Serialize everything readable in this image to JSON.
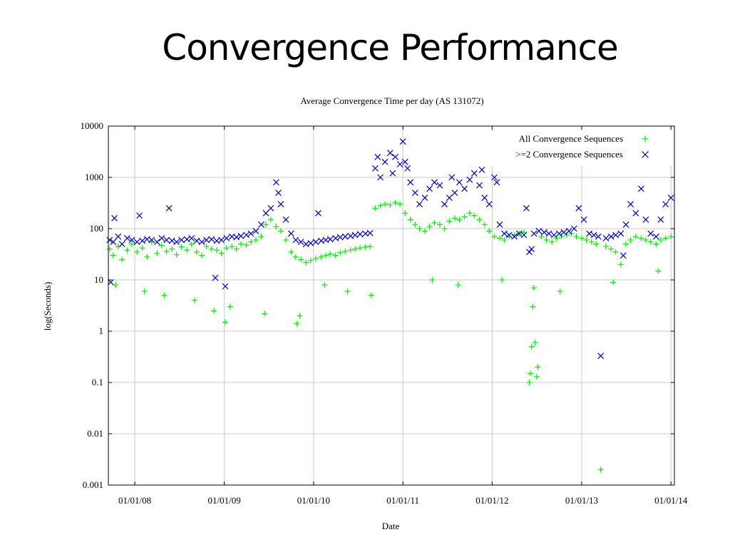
{
  "slide": {
    "title": "Convergence Performance"
  },
  "chart_data": {
    "type": "scatter",
    "title": "Average Convergence Time per day (AS 131072)",
    "xlabel": "Date",
    "ylabel": "log(Seconds)",
    "yscale": "log",
    "ylim": [
      0.001,
      10000
    ],
    "xlim": [
      "2007-09-15",
      "2014-01-15"
    ],
    "x_ticks": [
      "01/01/08",
      "01/01/09",
      "01/01/10",
      "01/01/11",
      "01/01/12",
      "01/01/13",
      "01/01/14"
    ],
    "y_ticks": [
      "10000",
      "1000",
      "100",
      "10",
      "1",
      "0.1",
      "0.01",
      "0.001"
    ],
    "grid": true,
    "legend_position": "top-right",
    "series": [
      {
        "name": "All Convergence Sequences",
        "marker": "+",
        "color": "#00ee00",
        "points": [
          [
            "2007-09-20",
            40
          ],
          [
            "2007-10-05",
            30
          ],
          [
            "2007-10-25",
            45
          ],
          [
            "2007-11-10",
            25
          ],
          [
            "2007-12-01",
            38
          ],
          [
            "2007-12-20",
            50
          ],
          [
            "2008-01-10",
            35
          ],
          [
            "2008-02-01",
            42
          ],
          [
            "2008-02-20",
            28
          ],
          [
            "2008-03-10",
            55
          ],
          [
            "2008-04-01",
            33
          ],
          [
            "2008-04-20",
            47
          ],
          [
            "2008-05-10",
            36
          ],
          [
            "2008-06-01",
            40
          ],
          [
            "2008-06-20",
            31
          ],
          [
            "2008-07-10",
            44
          ],
          [
            "2008-08-01",
            38
          ],
          [
            "2008-08-20",
            50
          ],
          [
            "2008-09-10",
            35
          ],
          [
            "2008-10-01",
            30
          ],
          [
            "2008-10-20",
            45
          ],
          [
            "2008-11-10",
            40
          ],
          [
            "2008-12-01",
            38
          ],
          [
            "2008-12-20",
            33
          ],
          [
            "2009-01-10",
            42
          ],
          [
            "2009-02-01",
            45
          ],
          [
            "2009-02-20",
            40
          ],
          [
            "2009-03-10",
            50
          ],
          [
            "2009-04-01",
            48
          ],
          [
            "2009-04-20",
            55
          ],
          [
            "2009-05-10",
            60
          ],
          [
            "2009-06-01",
            70
          ],
          [
            "2009-06-20",
            120
          ],
          [
            "2009-07-10",
            150
          ],
          [
            "2009-08-01",
            110
          ],
          [
            "2009-08-20",
            90
          ],
          [
            "2009-09-10",
            60
          ],
          [
            "2009-10-01",
            35
          ],
          [
            "2009-10-20",
            28
          ],
          [
            "2009-11-10",
            25
          ],
          [
            "2009-12-01",
            22
          ],
          [
            "2009-12-20",
            24
          ],
          [
            "2010-01-10",
            26
          ],
          [
            "2010-02-01",
            28
          ],
          [
            "2010-02-20",
            30
          ],
          [
            "2010-03-10",
            32
          ],
          [
            "2010-04-01",
            30
          ],
          [
            "2010-04-20",
            34
          ],
          [
            "2010-05-10",
            36
          ],
          [
            "2010-06-01",
            38
          ],
          [
            "2010-06-20",
            40
          ],
          [
            "2010-07-10",
            42
          ],
          [
            "2010-08-01",
            44
          ],
          [
            "2010-08-20",
            45
          ],
          [
            "2010-09-10",
            250
          ],
          [
            "2010-10-01",
            280
          ],
          [
            "2010-10-20",
            300
          ],
          [
            "2010-11-10",
            290
          ],
          [
            "2010-12-01",
            320
          ],
          [
            "2010-12-20",
            300
          ],
          [
            "2011-01-10",
            200
          ],
          [
            "2011-02-01",
            150
          ],
          [
            "2011-02-20",
            120
          ],
          [
            "2011-03-10",
            100
          ],
          [
            "2011-04-01",
            90
          ],
          [
            "2011-04-20",
            110
          ],
          [
            "2011-05-10",
            130
          ],
          [
            "2011-06-01",
            120
          ],
          [
            "2011-06-20",
            100
          ],
          [
            "2011-07-10",
            140
          ],
          [
            "2011-08-01",
            160
          ],
          [
            "2011-08-20",
            150
          ],
          [
            "2011-09-10",
            170
          ],
          [
            "2011-10-01",
            200
          ],
          [
            "2011-10-20",
            180
          ],
          [
            "2011-11-10",
            150
          ],
          [
            "2011-12-01",
            120
          ],
          [
            "2011-12-20",
            90
          ],
          [
            "2012-01-10",
            70
          ],
          [
            "2012-02-01",
            65
          ],
          [
            "2012-02-20",
            60
          ],
          [
            "2012-03-10",
            70
          ],
          [
            "2012-04-01",
            75
          ],
          [
            "2012-04-20",
            80
          ],
          [
            "2012-05-10",
            85
          ],
          [
            "2012-06-01",
            0.1
          ],
          [
            "2012-06-05",
            0.15
          ],
          [
            "2012-06-10",
            0.5
          ],
          [
            "2012-06-15",
            3
          ],
          [
            "2012-06-25",
            0.6
          ],
          [
            "2012-07-01",
            0.13
          ],
          [
            "2012-07-05",
            0.2
          ],
          [
            "2012-07-20",
            70
          ],
          [
            "2012-08-10",
            60
          ],
          [
            "2012-09-01",
            55
          ],
          [
            "2012-09-20",
            65
          ],
          [
            "2012-10-10",
            70
          ],
          [
            "2012-11-01",
            75
          ],
          [
            "2012-11-20",
            80
          ],
          [
            "2012-12-10",
            70
          ],
          [
            "2013-01-01",
            65
          ],
          [
            "2013-01-20",
            60
          ],
          [
            "2013-02-10",
            55
          ],
          [
            "2013-03-01",
            50
          ],
          [
            "2013-03-20",
            0.002
          ],
          [
            "2013-04-10",
            45
          ],
          [
            "2013-05-01",
            40
          ],
          [
            "2013-05-20",
            35
          ],
          [
            "2013-06-10",
            20
          ],
          [
            "2013-07-01",
            50
          ],
          [
            "2013-07-20",
            60
          ],
          [
            "2013-08-10",
            70
          ],
          [
            "2013-09-01",
            65
          ],
          [
            "2013-09-20",
            60
          ],
          [
            "2013-10-10",
            55
          ],
          [
            "2013-11-01",
            50
          ],
          [
            "2013-11-20",
            60
          ],
          [
            "2013-12-10",
            65
          ],
          [
            "2014-01-01",
            70
          ],
          [
            "2007-10-15",
            8
          ],
          [
            "2008-02-10",
            6
          ],
          [
            "2008-05-01",
            5
          ],
          [
            "2008-09-01",
            4
          ],
          [
            "2008-11-20",
            2.5
          ],
          [
            "2009-01-05",
            1.5
          ],
          [
            "2009-01-25",
            3
          ],
          [
            "2009-06-15",
            2.2
          ],
          [
            "2009-10-25",
            1.4
          ],
          [
            "2009-11-05",
            2
          ],
          [
            "2010-02-15",
            8
          ],
          [
            "2010-05-20",
            6
          ],
          [
            "2010-08-25",
            5
          ],
          [
            "2011-05-01",
            10
          ],
          [
            "2011-08-15",
            8
          ],
          [
            "2012-02-10",
            10
          ],
          [
            "2012-06-20",
            7
          ],
          [
            "2012-10-05",
            6
          ],
          [
            "2013-05-10",
            9
          ],
          [
            "2013-11-10",
            15
          ]
        ]
      },
      {
        "name": ">=2 Convergence Sequences",
        "marker": "x",
        "color": "#0000cc",
        "points": [
          [
            "2007-09-20",
            60
          ],
          [
            "2007-10-05",
            55
          ],
          [
            "2007-10-25",
            70
          ],
          [
            "2007-11-10",
            50
          ],
          [
            "2007-12-01",
            65
          ],
          [
            "2007-12-20",
            60
          ],
          [
            "2008-01-10",
            55
          ],
          [
            "2008-02-01",
            58
          ],
          [
            "2008-02-20",
            62
          ],
          [
            "2008-03-10",
            60
          ],
          [
            "2008-04-01",
            55
          ],
          [
            "2008-04-20",
            65
          ],
          [
            "2008-05-10",
            60
          ],
          [
            "2008-06-01",
            58
          ],
          [
            "2008-06-20",
            55
          ],
          [
            "2008-07-10",
            60
          ],
          [
            "2008-08-01",
            62
          ],
          [
            "2008-08-20",
            65
          ],
          [
            "2008-09-10",
            58
          ],
          [
            "2008-10-01",
            55
          ],
          [
            "2008-10-20",
            60
          ],
          [
            "2008-11-10",
            62
          ],
          [
            "2008-12-01",
            58
          ],
          [
            "2008-12-20",
            60
          ],
          [
            "2009-01-10",
            65
          ],
          [
            "2009-02-01",
            70
          ],
          [
            "2009-02-20",
            68
          ],
          [
            "2009-03-10",
            72
          ],
          [
            "2009-04-01",
            75
          ],
          [
            "2009-04-20",
            80
          ],
          [
            "2009-05-10",
            90
          ],
          [
            "2009-06-01",
            120
          ],
          [
            "2009-06-20",
            200
          ],
          [
            "2009-07-10",
            250
          ],
          [
            "2009-08-01",
            800
          ],
          [
            "2009-08-10",
            500
          ],
          [
            "2009-08-20",
            300
          ],
          [
            "2009-09-10",
            150
          ],
          [
            "2009-10-01",
            80
          ],
          [
            "2009-10-20",
            60
          ],
          [
            "2009-11-10",
            55
          ],
          [
            "2009-12-01",
            50
          ],
          [
            "2009-12-20",
            52
          ],
          [
            "2010-01-10",
            55
          ],
          [
            "2010-02-01",
            58
          ],
          [
            "2010-02-20",
            60
          ],
          [
            "2010-03-10",
            62
          ],
          [
            "2010-04-01",
            65
          ],
          [
            "2010-04-20",
            68
          ],
          [
            "2010-05-10",
            70
          ],
          [
            "2010-06-01",
            72
          ],
          [
            "2010-06-20",
            75
          ],
          [
            "2010-07-10",
            78
          ],
          [
            "2010-08-01",
            80
          ],
          [
            "2010-08-20",
            82
          ],
          [
            "2010-09-10",
            1500
          ],
          [
            "2010-09-20",
            2500
          ],
          [
            "2010-10-01",
            1000
          ],
          [
            "2010-10-20",
            2000
          ],
          [
            "2010-11-10",
            3000
          ],
          [
            "2010-11-20",
            1200
          ],
          [
            "2010-12-01",
            2500
          ],
          [
            "2010-12-20",
            1800
          ],
          [
            "2011-01-01",
            5000
          ],
          [
            "2011-01-10",
            2000
          ],
          [
            "2011-01-20",
            1500
          ],
          [
            "2011-02-01",
            800
          ],
          [
            "2011-02-20",
            500
          ],
          [
            "2011-03-10",
            300
          ],
          [
            "2011-04-01",
            400
          ],
          [
            "2011-04-20",
            600
          ],
          [
            "2011-05-10",
            800
          ],
          [
            "2011-06-01",
            700
          ],
          [
            "2011-06-20",
            300
          ],
          [
            "2011-07-10",
            400
          ],
          [
            "2011-08-01",
            500
          ],
          [
            "2011-08-20",
            800
          ],
          [
            "2011-09-10",
            600
          ],
          [
            "2011-10-01",
            900
          ],
          [
            "2011-10-20",
            1200
          ],
          [
            "2011-11-10",
            700
          ],
          [
            "2011-12-01",
            400
          ],
          [
            "2011-12-20",
            300
          ],
          [
            "2012-01-10",
            1000
          ],
          [
            "2012-01-20",
            800
          ],
          [
            "2012-02-01",
            120
          ],
          [
            "2012-02-20",
            80
          ],
          [
            "2012-03-10",
            75
          ],
          [
            "2012-04-01",
            70
          ],
          [
            "2012-04-20",
            80
          ],
          [
            "2012-05-10",
            75
          ],
          [
            "2012-05-20",
            250
          ],
          [
            "2012-06-01",
            35
          ],
          [
            "2012-06-10",
            40
          ],
          [
            "2012-06-20",
            80
          ],
          [
            "2012-07-10",
            90
          ],
          [
            "2012-08-01",
            85
          ],
          [
            "2012-08-20",
            80
          ],
          [
            "2012-09-10",
            75
          ],
          [
            "2012-10-01",
            80
          ],
          [
            "2012-10-20",
            85
          ],
          [
            "2012-11-10",
            90
          ],
          [
            "2012-12-01",
            100
          ],
          [
            "2012-12-20",
            250
          ],
          [
            "2013-01-10",
            150
          ],
          [
            "2013-02-01",
            80
          ],
          [
            "2013-02-20",
            75
          ],
          [
            "2013-03-10",
            70
          ],
          [
            "2013-03-20",
            0.33
          ],
          [
            "2013-04-10",
            65
          ],
          [
            "2013-05-01",
            70
          ],
          [
            "2013-05-20",
            75
          ],
          [
            "2013-06-10",
            80
          ],
          [
            "2013-07-01",
            120
          ],
          [
            "2013-07-20",
            300
          ],
          [
            "2013-08-10",
            200
          ],
          [
            "2013-09-01",
            600
          ],
          [
            "2013-09-20",
            150
          ],
          [
            "2013-10-10",
            80
          ],
          [
            "2013-11-01",
            70
          ],
          [
            "2013-11-20",
            150
          ],
          [
            "2013-12-10",
            300
          ],
          [
            "2014-01-01",
            400
          ],
          [
            "2007-09-25",
            9
          ],
          [
            "2007-10-10",
            160
          ],
          [
            "2008-01-20",
            180
          ],
          [
            "2008-05-20",
            250
          ],
          [
            "2008-11-25",
            11
          ],
          [
            "2009-01-05",
            7.5
          ],
          [
            "2010-01-20",
            200
          ],
          [
            "2011-07-20",
            1000
          ],
          [
            "2011-11-20",
            1400
          ],
          [
            "2013-06-20",
            30
          ]
        ]
      }
    ]
  }
}
